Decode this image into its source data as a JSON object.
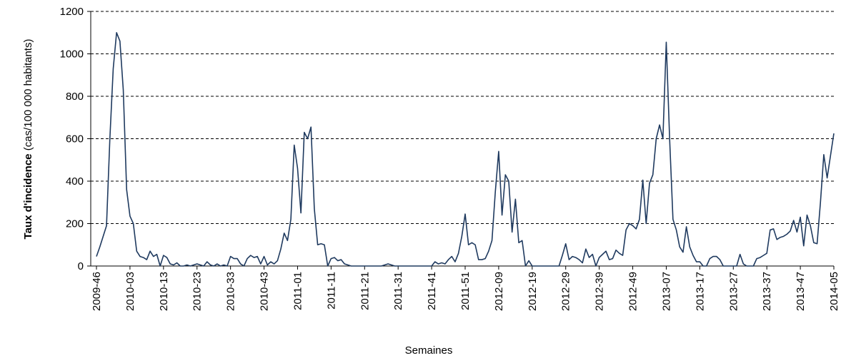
{
  "chart_data": {
    "type": "line",
    "ylabel": "Taux d'incidence",
    "ylabel_units": "(cas/100 000 habitants)",
    "xlabel": "Semaines",
    "categories": [
      "2009-46",
      null,
      null,
      null,
      null,
      null,
      null,
      null,
      null,
      null,
      "2010-03",
      null,
      null,
      null,
      null,
      null,
      null,
      null,
      null,
      null,
      "2010-13",
      null,
      null,
      null,
      null,
      null,
      null,
      null,
      null,
      null,
      "2010-23",
      null,
      null,
      null,
      null,
      null,
      null,
      null,
      null,
      null,
      "2010-33",
      null,
      null,
      null,
      null,
      null,
      null,
      null,
      null,
      null,
      "2010-43",
      null,
      null,
      null,
      null,
      null,
      null,
      null,
      null,
      null,
      "2011-01",
      null,
      null,
      null,
      null,
      null,
      null,
      null,
      null,
      null,
      "2011-11",
      null,
      null,
      null,
      null,
      null,
      null,
      null,
      null,
      null,
      "2011-21",
      null,
      null,
      null,
      null,
      null,
      null,
      null,
      null,
      null,
      "2011-31",
      null,
      null,
      null,
      null,
      null,
      null,
      null,
      null,
      null,
      "2011-41",
      null,
      null,
      null,
      null,
      null,
      null,
      null,
      null,
      null,
      "2011-51",
      null,
      null,
      null,
      null,
      null,
      null,
      null,
      null,
      null,
      "2012-09",
      null,
      null,
      null,
      null,
      null,
      null,
      null,
      null,
      null,
      "2012-19",
      null,
      null,
      null,
      null,
      null,
      null,
      null,
      null,
      null,
      "2012-29",
      null,
      null,
      null,
      null,
      null,
      null,
      null,
      null,
      null,
      "2012-39",
      null,
      null,
      null,
      null,
      null,
      null,
      null,
      null,
      null,
      "2012-49",
      null,
      null,
      null,
      null,
      null,
      null,
      null,
      null,
      null,
      "2013-07",
      null,
      null,
      null,
      null,
      null,
      null,
      null,
      null,
      null,
      "2013-17",
      null,
      null,
      null,
      null,
      null,
      null,
      null,
      null,
      null,
      "2013-27",
      null,
      null,
      null,
      null,
      null,
      null,
      null,
      null,
      null,
      "2013-37",
      null,
      null,
      null,
      null,
      null,
      null,
      null,
      null,
      null,
      "2013-47",
      null,
      null,
      null,
      null,
      null,
      null,
      null,
      null,
      null,
      "2014-05"
    ],
    "values": [
      45,
      90,
      140,
      190,
      600,
      930,
      1100,
      1060,
      830,
      360,
      235,
      200,
      70,
      45,
      40,
      30,
      70,
      45,
      55,
      0,
      50,
      40,
      10,
      5,
      15,
      0,
      0,
      5,
      0,
      5,
      10,
      5,
      0,
      20,
      5,
      0,
      10,
      0,
      5,
      0,
      45,
      35,
      35,
      10,
      0,
      35,
      50,
      40,
      45,
      10,
      45,
      5,
      20,
      10,
      25,
      80,
      155,
      120,
      220,
      570,
      460,
      250,
      630,
      600,
      655,
      270,
      100,
      105,
      100,
      0,
      35,
      40,
      25,
      30,
      10,
      5,
      0,
      0,
      0,
      0,
      0,
      0,
      0,
      0,
      0,
      0,
      5,
      10,
      5,
      0,
      0,
      0,
      0,
      0,
      0,
      0,
      0,
      0,
      0,
      0,
      0,
      20,
      10,
      15,
      10,
      30,
      45,
      20,
      60,
      140,
      245,
      100,
      110,
      100,
      30,
      30,
      35,
      70,
      120,
      350,
      540,
      240,
      430,
      400,
      160,
      315,
      110,
      120,
      0,
      25,
      0,
      0,
      0,
      0,
      0,
      0,
      0,
      0,
      0,
      50,
      105,
      30,
      45,
      40,
      30,
      15,
      80,
      40,
      55,
      0,
      40,
      55,
      70,
      30,
      35,
      75,
      60,
      50,
      170,
      200,
      190,
      175,
      220,
      405,
      200,
      390,
      430,
      600,
      665,
      600,
      1055,
      600,
      220,
      170,
      90,
      65,
      185,
      90,
      50,
      20,
      20,
      0,
      0,
      35,
      45,
      45,
      30,
      0,
      0,
      0,
      0,
      0,
      55,
      10,
      0,
      0,
      0,
      35,
      40,
      50,
      60,
      170,
      175,
      125,
      135,
      140,
      150,
      165,
      215,
      160,
      230,
      95,
      240,
      190,
      110,
      105,
      300,
      525,
      415,
      520,
      625
    ],
    "color": "#1f3a5f",
    "ylim": [
      0,
      1200
    ],
    "yticks": [
      0,
      200,
      400,
      600,
      800,
      1000,
      1200
    ],
    "grid": true
  }
}
